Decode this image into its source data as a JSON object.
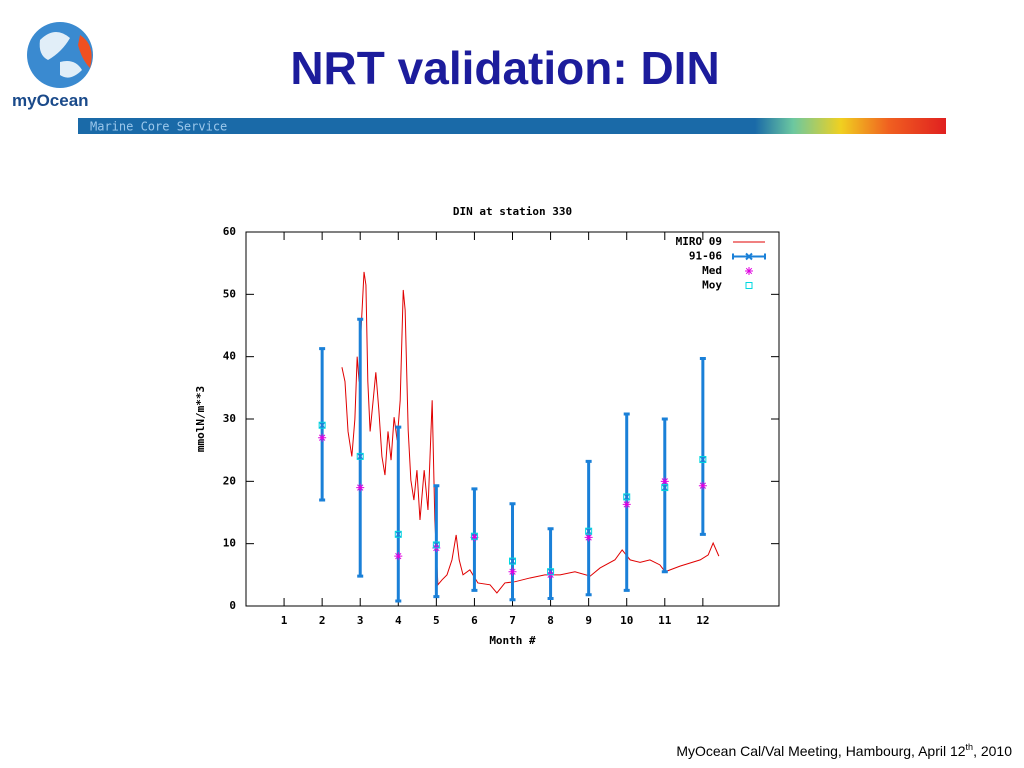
{
  "header": {
    "title": "NRT validation: DIN",
    "logo_text": "myOcean",
    "banner": "Marine Core Service"
  },
  "footer": {
    "text": "MyOcean Cal/Val Meeting, Hambourg, April 12",
    "sup": "th",
    "tail": ", 2010"
  },
  "chart_data": {
    "type": "line",
    "title": "DIN at station 330",
    "x_label": "Month #",
    "y_label": "mmolN/m**3",
    "xlim": [
      0,
      14
    ],
    "xticks": [
      1,
      2,
      3,
      4,
      5,
      6,
      7,
      8,
      9,
      10,
      11,
      12
    ],
    "ylim": [
      0,
      60
    ],
    "yticks": [
      0,
      10,
      20,
      30,
      40,
      50,
      60
    ],
    "grid": false,
    "legend": "top right",
    "series": [
      {
        "name": "MIRO 09",
        "style": "line",
        "color": "#e00000",
        "x": [
          2.52,
          2.6,
          2.68,
          2.78,
          2.86,
          2.92,
          2.97,
          3.02,
          3.1,
          3.15,
          3.2,
          3.26,
          3.34,
          3.41,
          3.49,
          3.57,
          3.65,
          3.73,
          3.81,
          3.89,
          3.97,
          4.05,
          4.13,
          4.18,
          4.26,
          4.33,
          4.41,
          4.49,
          4.57,
          4.68,
          4.78,
          4.89,
          4.96,
          5.04,
          5.15,
          5.28,
          5.41,
          5.52,
          5.6,
          5.7,
          5.88,
          6.09,
          6.41,
          6.59,
          6.8,
          7.07,
          7.46,
          7.85,
          8.25,
          8.64,
          9.04,
          9.3,
          9.69,
          9.88,
          10.09,
          10.35,
          10.61,
          10.87,
          11.01,
          11.4,
          11.93,
          12.14,
          12.27,
          12.42
        ],
        "values": [
          38.3,
          36,
          28,
          24,
          30,
          40,
          36,
          44,
          53.6,
          51.5,
          36,
          28,
          33,
          37.5,
          31.4,
          24,
          21,
          28,
          23.4,
          30.3,
          26.6,
          33,
          50.7,
          47.5,
          28.2,
          20.2,
          17,
          21.8,
          13.8,
          21.8,
          15.4,
          33,
          13.8,
          3.4,
          4.2,
          5,
          7.4,
          11.4,
          7.4,
          5,
          5.8,
          3.7,
          3.4,
          2.1,
          3.7,
          3.9,
          4.5,
          5,
          5,
          5.5,
          4.8,
          6.1,
          7.4,
          9,
          7.4,
          7,
          7.4,
          6.6,
          5.5,
          6.4,
          7.4,
          8.2,
          10.1,
          8
        ]
      },
      {
        "name": "91-06",
        "style": "errorbar",
        "color": "#1a80d8",
        "x": [
          2,
          3,
          4,
          5,
          6,
          7,
          8,
          9,
          10,
          11,
          12
        ],
        "values": [
          29,
          24,
          11.5,
          9.8,
          11.2,
          7.2,
          5.5,
          12,
          17.5,
          19,
          23.5
        ],
        "low": [
          17,
          4.8,
          0.8,
          1.5,
          2.5,
          1,
          1.2,
          1.8,
          2.5,
          5.5,
          11.5
        ],
        "high": [
          41.3,
          46,
          28.7,
          19.3,
          18.8,
          16.4,
          12.4,
          23.2,
          30.8,
          30,
          39.7
        ]
      },
      {
        "name": "Med",
        "style": "star",
        "color": "#e000e0",
        "x": [
          2,
          3,
          4,
          5,
          6,
          7,
          8,
          9,
          10,
          11,
          12
        ],
        "values": [
          27,
          19,
          8,
          9.3,
          11,
          5.5,
          5,
          11,
          16.3,
          20,
          19.3
        ]
      },
      {
        "name": "Moy",
        "style": "square",
        "color": "#00d8e0",
        "x": [
          2,
          3,
          4,
          5,
          6,
          7,
          8,
          9,
          10,
          11,
          12
        ],
        "values": [
          29,
          24,
          11.5,
          9.8,
          11.2,
          7.2,
          5.5,
          12,
          17.5,
          19,
          23.5
        ]
      }
    ]
  }
}
